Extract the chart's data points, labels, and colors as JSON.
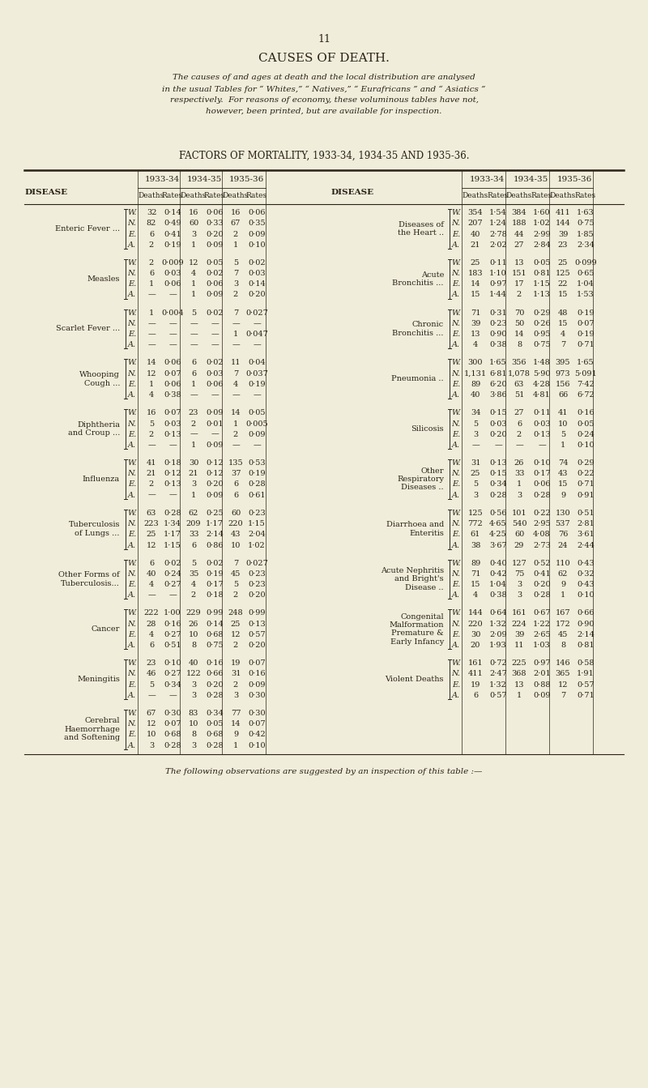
{
  "bg_color": "#f0edda",
  "text_color": "#2a2218",
  "page_number": "11",
  "title": "CAUSES OF DEATH.",
  "intro_text_lines": [
    "The causes of and ages at death and the local distribution are analysed",
    "in the usual Tables for “ Whites,” “ Natives,” “ Eurafricans ” and “ Asiatics ”",
    "respectively.  For reasons of economy, these voluminous tables have not,",
    "however, been printed, but are available for inspection."
  ],
  "table_title": "FACTORS OF MORTALITY, 1933-34, 1934-35 AND 1935-36.",
  "footer_text": "The following observations are suggested by an inspection of this table :—",
  "left_diseases": [
    "Enteric Fever ...",
    "Measles",
    "Scarlet Fever ...",
    "Whooping\nCough ...",
    "Diphtheria\nand Croup ...",
    "Influenza",
    "Tuberculosis\nof Lungs ...",
    "Other Forms of\nTuberculosis...",
    "Cancer",
    "Meningitis",
    "Cerebral\nHaemorrhage\nand Softening"
  ],
  "right_diseases": [
    "Diseases of\nthe Heart ..",
    "Acute\nBronchitis ...",
    "Chronic\nBronchitis ...",
    "Pneumonia ..",
    "Silicosis",
    "Other\nRespiratory\nDiseases ..",
    "Diarrhoea and\nEnteritis",
    "Acute Nephritis\nand Bright's\nDisease ..",
    "Congenital\nMalformation\nPremature &\nEarly Infancy",
    "Violent Deaths"
  ],
  "left_data": [
    [
      [
        "W.",
        "32",
        "0·14",
        "16",
        "0·06",
        "16",
        "0·06"
      ],
      [
        "N.",
        "82",
        "0·49",
        "60",
        "0·33",
        "67",
        "0·35"
      ],
      [
        "E.",
        "6",
        "0·41",
        "3",
        "0·20",
        "2",
        "0·09"
      ],
      [
        "A.",
        "2",
        "0·19",
        "1",
        "0·09",
        "1",
        "0·10"
      ]
    ],
    [
      [
        "W.",
        "2",
        "0·009",
        "12",
        "0·05",
        "5",
        "0·02"
      ],
      [
        "N.",
        "6",
        "0·03",
        "4",
        "0·02",
        "7",
        "0·03"
      ],
      [
        "E.",
        "1",
        "0·06",
        "1",
        "0·06",
        "3",
        "0·14"
      ],
      [
        "A.",
        "—",
        "—",
        "1",
        "0·09",
        "2",
        "0·20"
      ]
    ],
    [
      [
        "W.",
        "1",
        "0·004",
        "5",
        "0·02",
        "7",
        "0·027"
      ],
      [
        "N.",
        "—",
        "—",
        "—",
        "—",
        "—",
        "—"
      ],
      [
        "E.",
        "—",
        "—",
        "—",
        "—",
        "1",
        "0·047"
      ],
      [
        "A.",
        "—",
        "—",
        "—",
        "—",
        "—",
        "—"
      ]
    ],
    [
      [
        "W.",
        "14",
        "0·06",
        "6",
        "0·02",
        "11",
        "0·04"
      ],
      [
        "N.",
        "12",
        "0·07",
        "6",
        "0·03",
        "7",
        "0·037"
      ],
      [
        "E.",
        "1",
        "0·06",
        "1",
        "0·06",
        "4",
        "0·19"
      ],
      [
        "A.",
        "4",
        "0·38",
        "—",
        "—",
        "—",
        "—"
      ]
    ],
    [
      [
        "W.",
        "16",
        "0·07",
        "23",
        "0·09",
        "14",
        "0·05"
      ],
      [
        "N.",
        "5",
        "0·03",
        "2",
        "0·01",
        "1",
        "0·005"
      ],
      [
        "E.",
        "2",
        "0·13",
        "—",
        "—",
        "2",
        "0·09"
      ],
      [
        "A.",
        "—",
        "—",
        "1",
        "0·09",
        "—",
        "—"
      ]
    ],
    [
      [
        "W.",
        "41",
        "0·18",
        "30",
        "0·12",
        "135",
        "0·53"
      ],
      [
        "N.",
        "21",
        "0·12",
        "21",
        "0·12",
        "37",
        "0·19"
      ],
      [
        "E.",
        "2",
        "0·13",
        "3",
        "0·20",
        "6",
        "0·28"
      ],
      [
        "A.",
        "—",
        "—",
        "1",
        "0·09",
        "6",
        "0·61"
      ]
    ],
    [
      [
        "W.",
        "63",
        "0·28",
        "62",
        "0·25",
        "60",
        "0·23"
      ],
      [
        "N.",
        "223",
        "1·34",
        "209",
        "1·17",
        "220",
        "1·15"
      ],
      [
        "E.",
        "25",
        "1·17",
        "33",
        "2·14",
        "43",
        "2·04"
      ],
      [
        "A.",
        "12",
        "1·15",
        "6",
        "0·86",
        "10",
        "1·02"
      ]
    ],
    [
      [
        "W.",
        "6",
        "0·02",
        "5",
        "0·02",
        "7",
        "0·027"
      ],
      [
        "N.",
        "40",
        "0·24",
        "35",
        "0·19",
        "45",
        "0·23"
      ],
      [
        "E.",
        "4",
        "0·27",
        "4",
        "0·17",
        "5",
        "0·23"
      ],
      [
        "A.",
        "—",
        "—",
        "2",
        "0·18",
        "2",
        "0·20"
      ]
    ],
    [
      [
        "W.",
        "222",
        "1·00",
        "229",
        "0·99",
        "248",
        "0·99"
      ],
      [
        "N.",
        "28",
        "0·16",
        "26",
        "0·14",
        "25",
        "0·13"
      ],
      [
        "E.",
        "4",
        "0·27",
        "10",
        "0·68",
        "12",
        "0·57"
      ],
      [
        "A.",
        "6",
        "0·51",
        "8",
        "0·75",
        "2",
        "0·20"
      ]
    ],
    [
      [
        "W.",
        "23",
        "0·10",
        "40",
        "0·16",
        "19",
        "0·07"
      ],
      [
        "N.",
        "46",
        "0·27",
        "122",
        "0·66",
        "31",
        "0·16"
      ],
      [
        "E.",
        "5",
        "0·34",
        "3",
        "0·20",
        "2",
        "0·09"
      ],
      [
        "A.",
        "—",
        "—",
        "3",
        "0·28",
        "3",
        "0·30"
      ]
    ],
    [
      [
        "W.",
        "67",
        "0·30",
        "83",
        "0·34",
        "77",
        "0·30"
      ],
      [
        "N.",
        "12",
        "0·07",
        "10",
        "0·05",
        "14",
        "0·07"
      ],
      [
        "E.",
        "10",
        "0·68",
        "8",
        "0·68",
        "9",
        "0·42"
      ],
      [
        "A.",
        "3",
        "0·28",
        "3",
        "0·28",
        "1",
        "0·10"
      ]
    ]
  ],
  "right_data": [
    [
      [
        "W.",
        "354",
        "1·54",
        "384",
        "1·60",
        "411",
        "1·63"
      ],
      [
        "N.",
        "207",
        "1·24",
        "188",
        "1·02",
        "144",
        "0·75"
      ],
      [
        "E.",
        "40",
        "2·78",
        "44",
        "2·99",
        "39",
        "1·85"
      ],
      [
        "A.",
        "21",
        "2·02",
        "27",
        "2·84",
        "23",
        "2·34"
      ]
    ],
    [
      [
        "W.",
        "25",
        "0·11",
        "13",
        "0·05",
        "25",
        "0·099"
      ],
      [
        "N.",
        "183",
        "1·10",
        "151",
        "0·81",
        "125",
        "0·65"
      ],
      [
        "E.",
        "14",
        "0·97",
        "17",
        "1·15",
        "22",
        "1·04"
      ],
      [
        "A.",
        "15",
        "1·44",
        "2",
        "1·13",
        "15",
        "1·53"
      ]
    ],
    [
      [
        "W.",
        "71",
        "0·31",
        "70",
        "0·29",
        "48",
        "0·19"
      ],
      [
        "N.",
        "39",
        "0·23",
        "50",
        "0·26",
        "15",
        "0·07"
      ],
      [
        "E.",
        "13",
        "0·90",
        "14",
        "0·95",
        "4",
        "0·19"
      ],
      [
        "A.",
        "4",
        "0·38",
        "8",
        "0·75",
        "7",
        "0·71"
      ]
    ],
    [
      [
        "W.",
        "300",
        "1·65",
        "356",
        "1·48",
        "395",
        "1·65"
      ],
      [
        "N.",
        "1,131",
        "6·81",
        "1,078",
        "5·90",
        "973",
        "5·091"
      ],
      [
        "E.",
        "89",
        "6·20",
        "63",
        "4·28",
        "156",
        "7·42"
      ],
      [
        "A.",
        "40",
        "3·86",
        "51",
        "4·81",
        "66",
        "6·72"
      ]
    ],
    [
      [
        "W.",
        "34",
        "0·15",
        "27",
        "0·11",
        "41",
        "0·16"
      ],
      [
        "N.",
        "5",
        "0·03",
        "6",
        "0·03",
        "10",
        "0·05"
      ],
      [
        "E.",
        "3",
        "0·20",
        "2",
        "0·13",
        "5",
        "0·24"
      ],
      [
        "A.",
        "—",
        "—",
        "—",
        "—",
        "1",
        "0·10"
      ]
    ],
    [
      [
        "W.",
        "31",
        "0·13",
        "26",
        "0·10",
        "74",
        "0·29"
      ],
      [
        "N.",
        "25",
        "0·15",
        "33",
        "0·17",
        "43",
        "0·22"
      ],
      [
        "E.",
        "5",
        "0·34",
        "1",
        "0·06",
        "15",
        "0·71"
      ],
      [
        "A.",
        "3",
        "0·28",
        "3",
        "0·28",
        "9",
        "0·91"
      ]
    ],
    [
      [
        "W.",
        "125",
        "0·56",
        "101",
        "0·22",
        "130",
        "0·51"
      ],
      [
        "N.",
        "772",
        "4·65",
        "540",
        "2·95",
        "537",
        "2·81"
      ],
      [
        "E.",
        "61",
        "4·25",
        "60",
        "4·08",
        "76",
        "3·61"
      ],
      [
        "A.",
        "38",
        "3·67",
        "29",
        "2·73",
        "24",
        "2·44"
      ]
    ],
    [
      [
        "W.",
        "89",
        "0·40",
        "127",
        "0·52",
        "110",
        "0·43"
      ],
      [
        "N.",
        "71",
        "0·42",
        "75",
        "0·41",
        "62",
        "0·32"
      ],
      [
        "E.",
        "15",
        "1·04",
        "3",
        "0·20",
        "9",
        "0·43"
      ],
      [
        "A.",
        "4",
        "0·38",
        "3",
        "0·28",
        "1",
        "0·10"
      ]
    ],
    [
      [
        "W.",
        "144",
        "0·64",
        "161",
        "0·67",
        "167",
        "0·66"
      ],
      [
        "N.",
        "220",
        "1·32",
        "224",
        "1·22",
        "172",
        "0·90"
      ],
      [
        "E.",
        "30",
        "2·09",
        "39",
        "2·65",
        "45",
        "2·14"
      ],
      [
        "A.",
        "20",
        "1·93",
        "11",
        "1·03",
        "8",
        "0·81"
      ]
    ],
    [
      [
        "W.",
        "161",
        "0·72",
        "225",
        "0·97",
        "146",
        "0·58"
      ],
      [
        "N.",
        "411",
        "2·47",
        "368",
        "2·01",
        "365",
        "1·91"
      ],
      [
        "E.",
        "19",
        "1·32",
        "13",
        "0·88",
        "12",
        "0·57"
      ],
      [
        "A.",
        "6",
        "0·57",
        "1",
        "0·09",
        "7",
        "0·71"
      ]
    ]
  ]
}
